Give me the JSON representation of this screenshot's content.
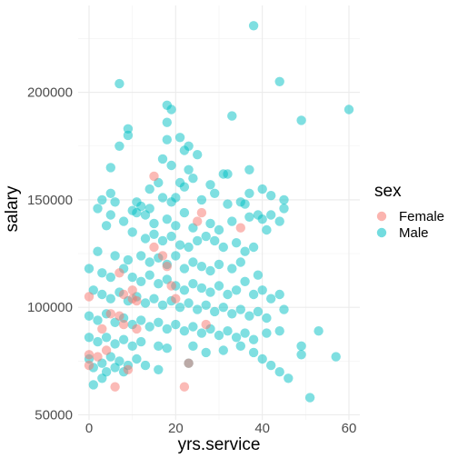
{
  "chart_data": {
    "type": "scatter",
    "title": "",
    "xlabel": "yrs.service",
    "ylabel": "salary",
    "xlim": [
      -2,
      62
    ],
    "ylim": [
      49000,
      240000
    ],
    "xticks": [
      0,
      20,
      40,
      60
    ],
    "xtick_labels": [
      "0",
      "20",
      "40",
      "60"
    ],
    "yticks": [
      50000,
      100000,
      150000,
      200000
    ],
    "ytick_labels": [
      "50000",
      "100000",
      "150000",
      "200000"
    ],
    "grid": true,
    "legend": {
      "title": "sex",
      "placement": "right"
    },
    "series": [
      {
        "name": "Female",
        "color": "#F8766D",
        "points": [
          [
            0,
            105000
          ],
          [
            0,
            78000
          ],
          [
            0,
            73000
          ],
          [
            2,
            77000
          ],
          [
            3,
            90000
          ],
          [
            4,
            80000
          ],
          [
            5,
            97000
          ],
          [
            6,
            63000
          ],
          [
            7,
            96000
          ],
          [
            7,
            116000
          ],
          [
            8,
            92000
          ],
          [
            8,
            106000
          ],
          [
            9,
            71000
          ],
          [
            10,
            104000
          ],
          [
            10,
            108000
          ],
          [
            11,
            90000
          ],
          [
            11,
            103000
          ],
          [
            15,
            128000
          ],
          [
            15,
            161000
          ],
          [
            17,
            124000
          ],
          [
            18,
            119000
          ],
          [
            19,
            110000
          ],
          [
            20,
            104000
          ],
          [
            22,
            63000
          ],
          [
            23,
            74000
          ],
          [
            25,
            140000
          ],
          [
            26,
            144000
          ],
          [
            27,
            92000
          ],
          [
            35,
            137000
          ]
        ]
      },
      {
        "name": "Male",
        "color": "#00BFC4",
        "points": [
          [
            38,
            231000
          ],
          [
            44,
            205000
          ],
          [
            7,
            204000
          ],
          [
            60,
            192000
          ],
          [
            18,
            194000
          ],
          [
            19,
            192000
          ],
          [
            33,
            189000
          ],
          [
            49,
            187000
          ],
          [
            18,
            186000
          ],
          [
            9,
            183000
          ],
          [
            9,
            180000
          ],
          [
            21,
            179000
          ],
          [
            18,
            178000
          ],
          [
            7,
            175000
          ],
          [
            23,
            175000
          ],
          [
            22,
            173000
          ],
          [
            25,
            171000
          ],
          [
            17,
            169000
          ],
          [
            19,
            166000
          ],
          [
            5,
            165000
          ],
          [
            23,
            164000
          ],
          [
            31,
            162000
          ],
          [
            32,
            162000
          ],
          [
            37,
            164000
          ],
          [
            24,
            160000
          ],
          [
            16,
            158000
          ],
          [
            21,
            158000
          ],
          [
            22,
            156000
          ],
          [
            14,
            155000
          ],
          [
            28,
            157000
          ],
          [
            29,
            153000
          ],
          [
            37,
            153000
          ],
          [
            42,
            152000
          ],
          [
            45,
            150000
          ],
          [
            40,
            155000
          ],
          [
            44,
            140000
          ],
          [
            5,
            153000
          ],
          [
            3,
            150000
          ],
          [
            6,
            149000
          ],
          [
            11,
            149000
          ],
          [
            12,
            147000
          ],
          [
            14,
            146000
          ],
          [
            17,
            151000
          ],
          [
            19,
            149000
          ],
          [
            20,
            151000
          ],
          [
            26,
            150000
          ],
          [
            32,
            148000
          ],
          [
            35,
            149000
          ],
          [
            36,
            148000
          ],
          [
            39,
            143000
          ],
          [
            40,
            141000
          ],
          [
            42,
            143000
          ],
          [
            45,
            146000
          ],
          [
            2,
            146000
          ],
          [
            5,
            143000
          ],
          [
            10,
            145000
          ],
          [
            11,
            144000
          ],
          [
            13,
            143000
          ],
          [
            15,
            139000
          ],
          [
            18,
            141000
          ],
          [
            20,
            138000
          ],
          [
            22,
            144000
          ],
          [
            24,
            137000
          ],
          [
            28,
            139000
          ],
          [
            30,
            136000
          ],
          [
            33,
            140000
          ],
          [
            37,
            142000
          ],
          [
            41,
            136000
          ],
          [
            4,
            138000
          ],
          [
            8,
            140000
          ],
          [
            10,
            135000
          ],
          [
            13,
            132000
          ],
          [
            15,
            134000
          ],
          [
            17,
            131000
          ],
          [
            19,
            133000
          ],
          [
            21,
            129000
          ],
          [
            23,
            128000
          ],
          [
            25,
            131000
          ],
          [
            27,
            133000
          ],
          [
            29,
            131000
          ],
          [
            31,
            128000
          ],
          [
            34,
            130000
          ],
          [
            36,
            126000
          ],
          [
            38,
            128000
          ],
          [
            2,
            126000
          ],
          [
            6,
            124000
          ],
          [
            9,
            122000
          ],
          [
            12,
            124000
          ],
          [
            14,
            121000
          ],
          [
            16,
            123000
          ],
          [
            18,
            120000
          ],
          [
            20,
            124000
          ],
          [
            22,
            118000
          ],
          [
            24,
            121000
          ],
          [
            26,
            119000
          ],
          [
            28,
            117000
          ],
          [
            30,
            120000
          ],
          [
            33,
            118000
          ],
          [
            35,
            121000
          ],
          [
            39,
            115000
          ],
          [
            0,
            118000
          ],
          [
            3,
            116000
          ],
          [
            5,
            114000
          ],
          [
            8,
            118000
          ],
          [
            10,
            114000
          ],
          [
            12,
            112000
          ],
          [
            14,
            115000
          ],
          [
            16,
            111000
          ],
          [
            18,
            113000
          ],
          [
            20,
            110000
          ],
          [
            22,
            108000
          ],
          [
            24,
            111000
          ],
          [
            26,
            109000
          ],
          [
            28,
            107000
          ],
          [
            30,
            110000
          ],
          [
            32,
            106000
          ],
          [
            34,
            108000
          ],
          [
            36,
            112000
          ],
          [
            38,
            106000
          ],
          [
            40,
            108000
          ],
          [
            42,
            104000
          ],
          [
            44,
            106000
          ],
          [
            1,
            108000
          ],
          [
            3,
            106000
          ],
          [
            5,
            104000
          ],
          [
            7,
            107000
          ],
          [
            9,
            103000
          ],
          [
            11,
            105000
          ],
          [
            13,
            102000
          ],
          [
            15,
            104000
          ],
          [
            17,
            101000
          ],
          [
            19,
            103000
          ],
          [
            21,
            100000
          ],
          [
            23,
            102000
          ],
          [
            25,
            99000
          ],
          [
            27,
            101000
          ],
          [
            29,
            98000
          ],
          [
            31,
            100000
          ],
          [
            33,
            97000
          ],
          [
            35,
            99000
          ],
          [
            37,
            96000
          ],
          [
            39,
            98000
          ],
          [
            41,
            95000
          ],
          [
            45,
            99000
          ],
          [
            0,
            96000
          ],
          [
            2,
            94000
          ],
          [
            4,
            97000
          ],
          [
            6,
            93000
          ],
          [
            8,
            95000
          ],
          [
            10,
            92000
          ],
          [
            12,
            94000
          ],
          [
            14,
            91000
          ],
          [
            16,
            93000
          ],
          [
            18,
            90000
          ],
          [
            20,
            92000
          ],
          [
            22,
            89000
          ],
          [
            24,
            91000
          ],
          [
            26,
            88000
          ],
          [
            28,
            90000
          ],
          [
            30,
            87000
          ],
          [
            32,
            89000
          ],
          [
            34,
            86000
          ],
          [
            36,
            88000
          ],
          [
            38,
            85000
          ],
          [
            41,
            88000
          ],
          [
            44,
            89000
          ],
          [
            53,
            89000
          ],
          [
            0,
            86000
          ],
          [
            2,
            84000
          ],
          [
            4,
            86000
          ],
          [
            6,
            83000
          ],
          [
            8,
            85000
          ],
          [
            10,
            82000
          ],
          [
            12,
            84000
          ],
          [
            16,
            82000
          ],
          [
            18,
            81000
          ],
          [
            24,
            82000
          ],
          [
            27,
            79000
          ],
          [
            31,
            80000
          ],
          [
            35,
            82000
          ],
          [
            38,
            79000
          ],
          [
            49,
            82000
          ],
          [
            49,
            78000
          ],
          [
            57,
            77000
          ],
          [
            0,
            76000
          ],
          [
            3,
            74000
          ],
          [
            5,
            77000
          ],
          [
            7,
            75000
          ],
          [
            9,
            73000
          ],
          [
            11,
            76000
          ],
          [
            1,
            72000
          ],
          [
            4,
            70000
          ],
          [
            6,
            72000
          ],
          [
            8,
            70000
          ],
          [
            13,
            73000
          ],
          [
            16,
            71000
          ],
          [
            23,
            74000
          ],
          [
            40,
            76000
          ],
          [
            42,
            73000
          ],
          [
            44,
            70000
          ],
          [
            46,
            67000
          ],
          [
            1,
            64000
          ],
          [
            3,
            67000
          ],
          [
            51,
            58000
          ]
        ]
      }
    ]
  }
}
